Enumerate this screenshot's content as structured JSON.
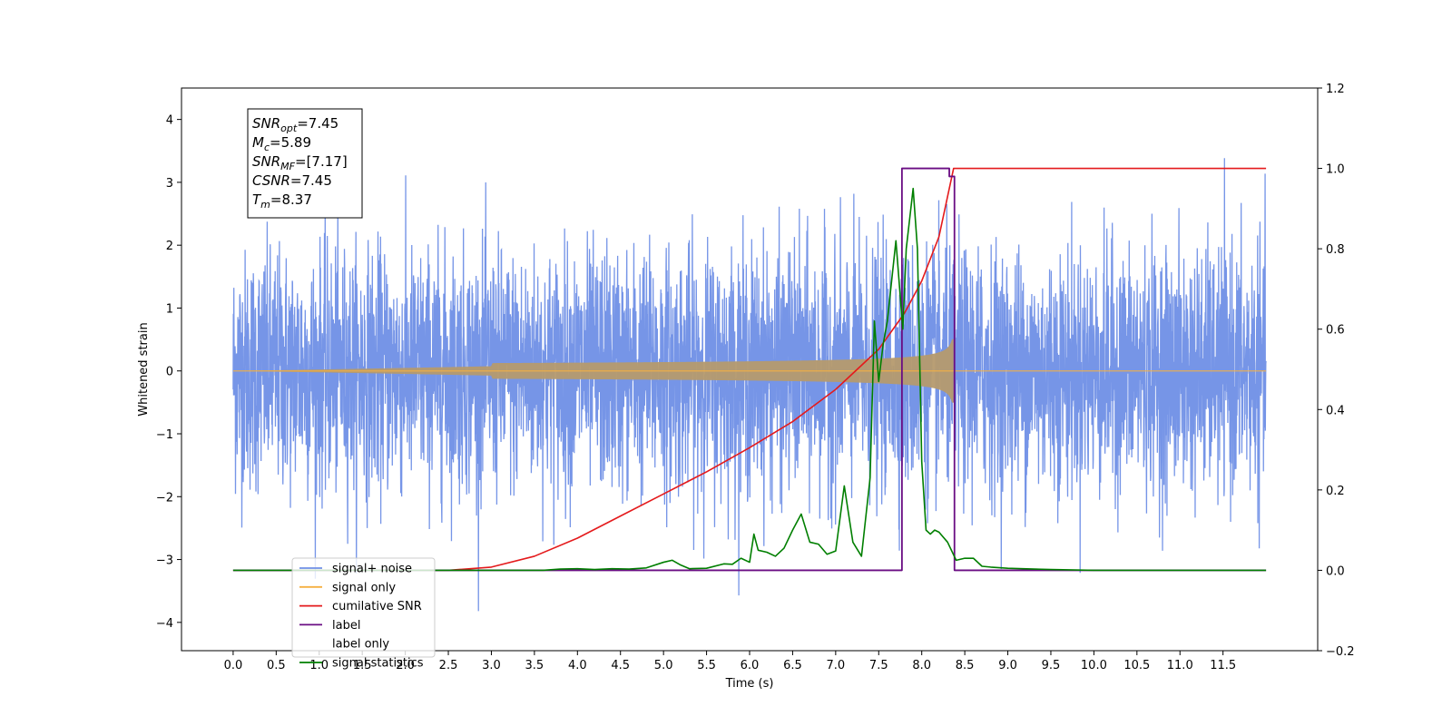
{
  "chart_data": {
    "type": "line",
    "xlabel": "Time (s)",
    "ylabel": "Whitened strain",
    "xlim": [
      -0.6,
      12.6
    ],
    "ylim": [
      -4.45,
      4.5
    ],
    "y2lim": [
      -0.2,
      1.2
    ],
    "x_ticks": [
      "0.0",
      "0.5",
      "1.0",
      "1.5",
      "2.0",
      "2.5",
      "3.0",
      "3.5",
      "4.0",
      "4.5",
      "5.0",
      "5.5",
      "6.0",
      "6.5",
      "7.0",
      "7.5",
      "8.0",
      "8.5",
      "9.0",
      "9.5",
      "10.0",
      "10.5",
      "11.0",
      "11.5"
    ],
    "y_ticks": [
      "4",
      "3",
      "2",
      "1",
      "0",
      "−1",
      "−2",
      "−3",
      "−4"
    ],
    "y2_ticks": [
      "1.2",
      "1.0",
      "0.8",
      "0.6",
      "0.4",
      "0.2",
      "0.0",
      "−0.2"
    ],
    "annotation": {
      "lines": [
        {
          "main": "SNR",
          "sub": "opt",
          "rest": "=7.45"
        },
        {
          "main": "M",
          "sub": "c",
          "rest": "=5.89"
        },
        {
          "main": "SNR",
          "sub": "MF",
          "rest": "=[7.17]"
        },
        {
          "main": "CSNR",
          "sub": "",
          "rest": "=7.45"
        },
        {
          "main": "T",
          "sub": "m",
          "rest": "=8.37"
        }
      ]
    },
    "series": [
      {
        "name": "signal+ noise",
        "color": "#6f8fe6",
        "x_range": [
          0.0,
          12.0
        ],
        "amplitude_typical": 2.2,
        "amplitude_peak": 3.8,
        "min": -4.05
      },
      {
        "name": "signal only",
        "color": "#f5b041",
        "x_range": [
          0.0,
          12.0
        ],
        "chirp_end": 8.37,
        "peak_amplitude": 0.55
      },
      {
        "name": "cumilative SNR",
        "color": "#e41a1c",
        "axis": "right",
        "x": [
          0.0,
          2.5,
          3.0,
          3.5,
          4.0,
          4.5,
          5.0,
          5.5,
          6.0,
          6.5,
          7.0,
          7.5,
          7.8,
          8.0,
          8.2,
          8.37,
          8.4,
          12.0
        ],
        "y": [
          0.0,
          0.0,
          0.008,
          0.035,
          0.08,
          0.135,
          0.19,
          0.245,
          0.305,
          0.37,
          0.45,
          0.55,
          0.64,
          0.72,
          0.83,
          1.0,
          1.0,
          1.0
        ]
      },
      {
        "name": "label",
        "color": "#6a0d83",
        "axis": "right",
        "x": [
          0.0,
          7.77,
          7.77,
          8.32,
          8.32,
          8.38,
          8.38,
          12.0
        ],
        "y": [
          0.0,
          0.0,
          1.0,
          1.0,
          0.98,
          0.98,
          0.0,
          0.0
        ]
      },
      {
        "name": "label only",
        "color": "#999999",
        "hidden_in_plot": true
      },
      {
        "name": "signal statistics",
        "color": "#007f00",
        "axis": "right",
        "x": [
          0.0,
          3.6,
          3.8,
          4.0,
          4.2,
          4.4,
          4.6,
          4.8,
          5.0,
          5.1,
          5.2,
          5.3,
          5.5,
          5.7,
          5.8,
          5.9,
          6.0,
          6.05,
          6.1,
          6.2,
          6.3,
          6.4,
          6.5,
          6.6,
          6.7,
          6.8,
          6.9,
          7.0,
          7.1,
          7.2,
          7.3,
          7.4,
          7.45,
          7.5,
          7.55,
          7.6,
          7.7,
          7.78,
          7.82,
          7.9,
          7.95,
          8.0,
          8.05,
          8.1,
          8.15,
          8.2,
          8.3,
          8.4,
          8.5,
          8.6,
          8.7,
          8.8,
          9.0,
          9.5,
          10.0,
          10.5,
          12.0
        ],
        "y": [
          0.0,
          0.0,
          0.003,
          0.004,
          0.002,
          0.004,
          0.003,
          0.006,
          0.02,
          0.025,
          0.013,
          0.004,
          0.005,
          0.016,
          0.015,
          0.03,
          0.02,
          0.09,
          0.05,
          0.045,
          0.035,
          0.055,
          0.1,
          0.14,
          0.07,
          0.065,
          0.04,
          0.048,
          0.21,
          0.07,
          0.035,
          0.23,
          0.62,
          0.47,
          0.56,
          0.62,
          0.82,
          0.6,
          0.8,
          0.95,
          0.8,
          0.27,
          0.1,
          0.09,
          0.1,
          0.095,
          0.07,
          0.025,
          0.03,
          0.03,
          0.01,
          0.008,
          0.005,
          0.002,
          0.0,
          0.0,
          0.0
        ]
      }
    ],
    "legend": {
      "placement": "lower-left"
    }
  }
}
